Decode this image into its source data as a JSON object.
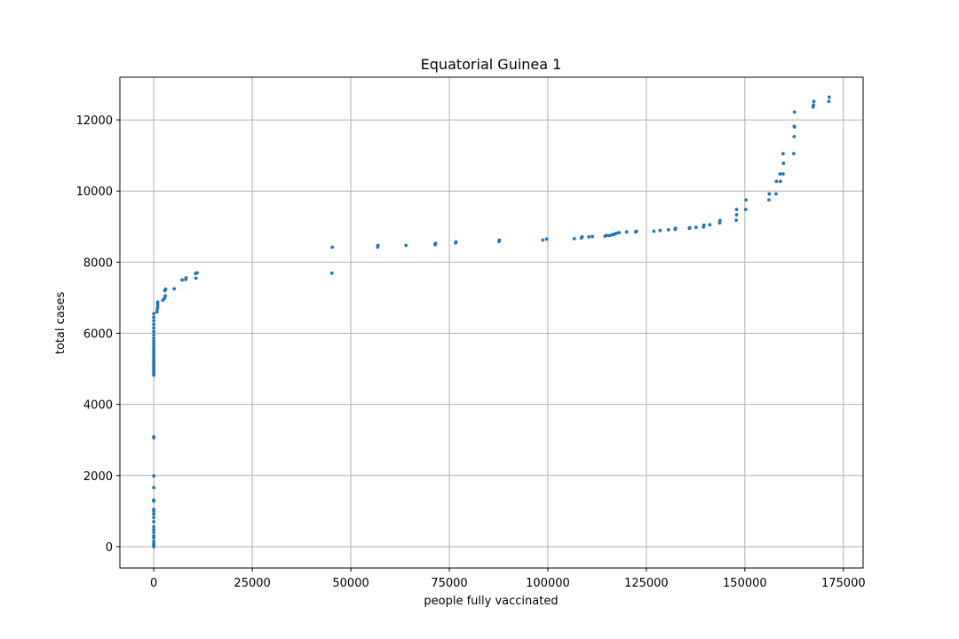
{
  "chart_data": {
    "type": "scatter",
    "title": "Equatorial Guinea 1",
    "xlabel": "people fully vaccinated",
    "ylabel": "total cases",
    "xlim": [
      -8600,
      180000
    ],
    "ylim": [
      -600,
      13200
    ],
    "xticks": [
      0,
      25000,
      50000,
      75000,
      100000,
      125000,
      150000,
      175000
    ],
    "yticks": [
      0,
      2000,
      4000,
      6000,
      8000,
      10000,
      12000
    ],
    "grid": true,
    "color": "#1f77b4",
    "points": [
      [
        0,
        0
      ],
      [
        0,
        40
      ],
      [
        0,
        80
      ],
      [
        0,
        150
      ],
      [
        0,
        250
      ],
      [
        0,
        300
      ],
      [
        0,
        400
      ],
      [
        0,
        480
      ],
      [
        0,
        560
      ],
      [
        0,
        700
      ],
      [
        0,
        820
      ],
      [
        0,
        920
      ],
      [
        0,
        1000
      ],
      [
        0,
        1050
      ],
      [
        0,
        1280
      ],
      [
        0,
        1310
      ],
      [
        0,
        1660
      ],
      [
        0,
        1990
      ],
      [
        0,
        3060
      ],
      [
        0,
        3090
      ],
      [
        0,
        4820
      ],
      [
        0,
        4870
      ],
      [
        0,
        4920
      ],
      [
        0,
        4980
      ],
      [
        0,
        5030
      ],
      [
        0,
        5080
      ],
      [
        0,
        5120
      ],
      [
        0,
        5180
      ],
      [
        0,
        5230
      ],
      [
        0,
        5280
      ],
      [
        0,
        5350
      ],
      [
        0,
        5420
      ],
      [
        0,
        5480
      ],
      [
        0,
        5550
      ],
      [
        0,
        5620
      ],
      [
        0,
        5700
      ],
      [
        0,
        5780
      ],
      [
        0,
        5860
      ],
      [
        0,
        5950
      ],
      [
        0,
        6050
      ],
      [
        0,
        6150
      ],
      [
        0,
        6250
      ],
      [
        0,
        6350
      ],
      [
        0,
        6450
      ],
      [
        0,
        6550
      ],
      [
        800,
        6600
      ],
      [
        900,
        6680
      ],
      [
        1000,
        6750
      ],
      [
        1000,
        6820
      ],
      [
        1000,
        6880
      ],
      [
        2300,
        6930
      ],
      [
        2700,
        6980
      ],
      [
        2900,
        7050
      ],
      [
        2800,
        7200
      ],
      [
        3000,
        7240
      ],
      [
        5200,
        7250
      ],
      [
        7200,
        7500
      ],
      [
        8100,
        7510
      ],
      [
        8200,
        7560
      ],
      [
        10700,
        7550
      ],
      [
        10600,
        7680
      ],
      [
        11000,
        7700
      ],
      [
        45200,
        7690
      ],
      [
        45300,
        8420
      ],
      [
        56800,
        8420
      ],
      [
        56900,
        8470
      ],
      [
        64000,
        8470
      ],
      [
        71400,
        8490
      ],
      [
        71500,
        8530
      ],
      [
        76600,
        8540
      ],
      [
        76700,
        8570
      ],
      [
        87600,
        8580
      ],
      [
        87700,
        8620
      ],
      [
        98700,
        8620
      ],
      [
        99700,
        8650
      ],
      [
        106700,
        8660
      ],
      [
        108500,
        8680
      ],
      [
        108700,
        8710
      ],
      [
        110400,
        8710
      ],
      [
        111300,
        8720
      ],
      [
        114500,
        8730
      ],
      [
        114900,
        8750
      ],
      [
        115700,
        8750
      ],
      [
        116400,
        8770
      ],
      [
        116900,
        8790
      ],
      [
        117400,
        8810
      ],
      [
        118100,
        8830
      ],
      [
        120000,
        8850
      ],
      [
        122300,
        8850
      ],
      [
        122500,
        8870
      ],
      [
        126900,
        8870
      ],
      [
        128500,
        8890
      ],
      [
        130600,
        8910
      ],
      [
        132300,
        8920
      ],
      [
        132400,
        8950
      ],
      [
        135900,
        8950
      ],
      [
        136000,
        8970
      ],
      [
        137600,
        8980
      ],
      [
        139500,
        8990
      ],
      [
        139600,
        9040
      ],
      [
        141100,
        9050
      ],
      [
        143600,
        9100
      ],
      [
        143700,
        9170
      ],
      [
        147800,
        9180
      ],
      [
        147900,
        9330
      ],
      [
        147900,
        9480
      ],
      [
        150200,
        9480
      ],
      [
        150300,
        9750
      ],
      [
        156100,
        9750
      ],
      [
        156200,
        9920
      ],
      [
        157900,
        9920
      ],
      [
        158000,
        10270
      ],
      [
        159000,
        10270
      ],
      [
        158900,
        10480
      ],
      [
        159700,
        10480
      ],
      [
        159800,
        10780
      ],
      [
        159700,
        11050
      ],
      [
        162400,
        11050
      ],
      [
        162500,
        11530
      ],
      [
        162600,
        11800
      ],
      [
        162500,
        11820
      ],
      [
        162600,
        12220
      ],
      [
        167300,
        12360
      ],
      [
        167400,
        12420
      ],
      [
        167500,
        12520
      ],
      [
        171300,
        12520
      ],
      [
        171400,
        12640
      ]
    ]
  }
}
